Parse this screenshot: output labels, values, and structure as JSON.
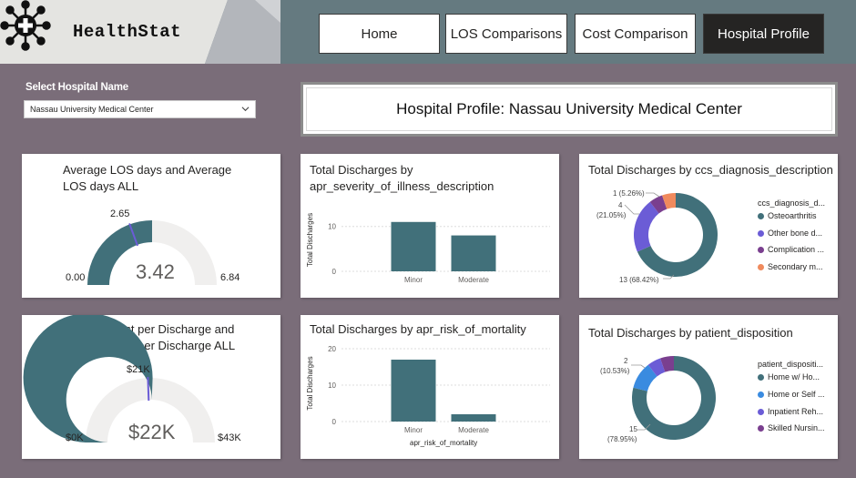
{
  "app": {
    "name": "HealthStat"
  },
  "nav": {
    "items": [
      {
        "label": "Home",
        "active": false
      },
      {
        "label": "LOS Comparisons",
        "active": false
      },
      {
        "label": "Cost Comparison",
        "active": false
      },
      {
        "label": "Hospital Profile",
        "active": true
      }
    ]
  },
  "filter": {
    "label": "Select Hospital Name",
    "value": "Nassau University Medical Center"
  },
  "page_title": "Hospital Profile: Nassau University Medical Center",
  "colors": {
    "primary": "#41707a",
    "purple": "#6b5cd6",
    "dark_purple": "#7a3f8f",
    "orange": "#f08a5d",
    "blue": "#3a8be0",
    "gauge_track": "#f0efee"
  },
  "los_gauge": {
    "title_line1": "Average LOS days and Average",
    "title_line2": "LOS days ALL",
    "value_label": "3.42",
    "min_label": "0.00",
    "max_label": "6.84",
    "target_label": "2.65",
    "value": 3.42,
    "min": 0,
    "max": 6.84,
    "target": 2.65
  },
  "cost_gauge": {
    "title_line1": "Average Cost per Discharge and",
    "title_line2": "Average Cost per Discharge ALL",
    "value_label": "$22K",
    "min_label": "$0K",
    "max_label": "$43K",
    "target_label": "$21K",
    "value": 22,
    "min": 0,
    "max": 43,
    "target": 21
  },
  "severity_chart": {
    "title_line1": "Total Discharges by",
    "title_line2": "apr_severity_of_illness_description",
    "ylabel": "Total Discharges",
    "xlabel": "",
    "chart_data": {
      "type": "bar",
      "categories": [
        "Minor",
        "Moderate"
      ],
      "values": [
        11,
        8
      ],
      "yticks": [
        0,
        10
      ],
      "ylim": [
        0,
        14
      ]
    }
  },
  "mortality_chart": {
    "title": "Total Discharges by apr_risk_of_mortality",
    "ylabel": "Total Discharges",
    "xlabel": "apr_risk_of_mortality",
    "chart_data": {
      "type": "bar",
      "categories": [
        "Minor",
        "Moderate"
      ],
      "values": [
        17,
        2
      ],
      "yticks": [
        0,
        10,
        20
      ],
      "ylim": [
        0,
        21
      ]
    }
  },
  "ccs_chart": {
    "title": "Total Discharges by ccs_diagnosis_description",
    "legend_title": "ccs_diagnosis_d...",
    "labels": {
      "a": "1 (5.26%)",
      "b1": "4",
      "b2": "(21.05%)",
      "c": "13 (68.42%)"
    },
    "chart_data": {
      "type": "pie",
      "categories": [
        "Osteoarthritis",
        "Other bone d...",
        "Complication ...",
        "Secondary m..."
      ],
      "values": [
        13,
        4,
        1,
        1
      ]
    }
  },
  "disposition_chart": {
    "title": "Total Discharges by patient_disposition",
    "legend_title": "patient_dispositi...",
    "labels": {
      "a1": "2",
      "a2": "(10.53%)",
      "b1": "15",
      "b2": "(78.95%)"
    },
    "chart_data": {
      "type": "pie",
      "categories": [
        "Home w/ Ho...",
        "Home or Self ...",
        "Inpatient Reh...",
        "Skilled Nursin..."
      ],
      "values": [
        15,
        2,
        1,
        1
      ]
    }
  }
}
